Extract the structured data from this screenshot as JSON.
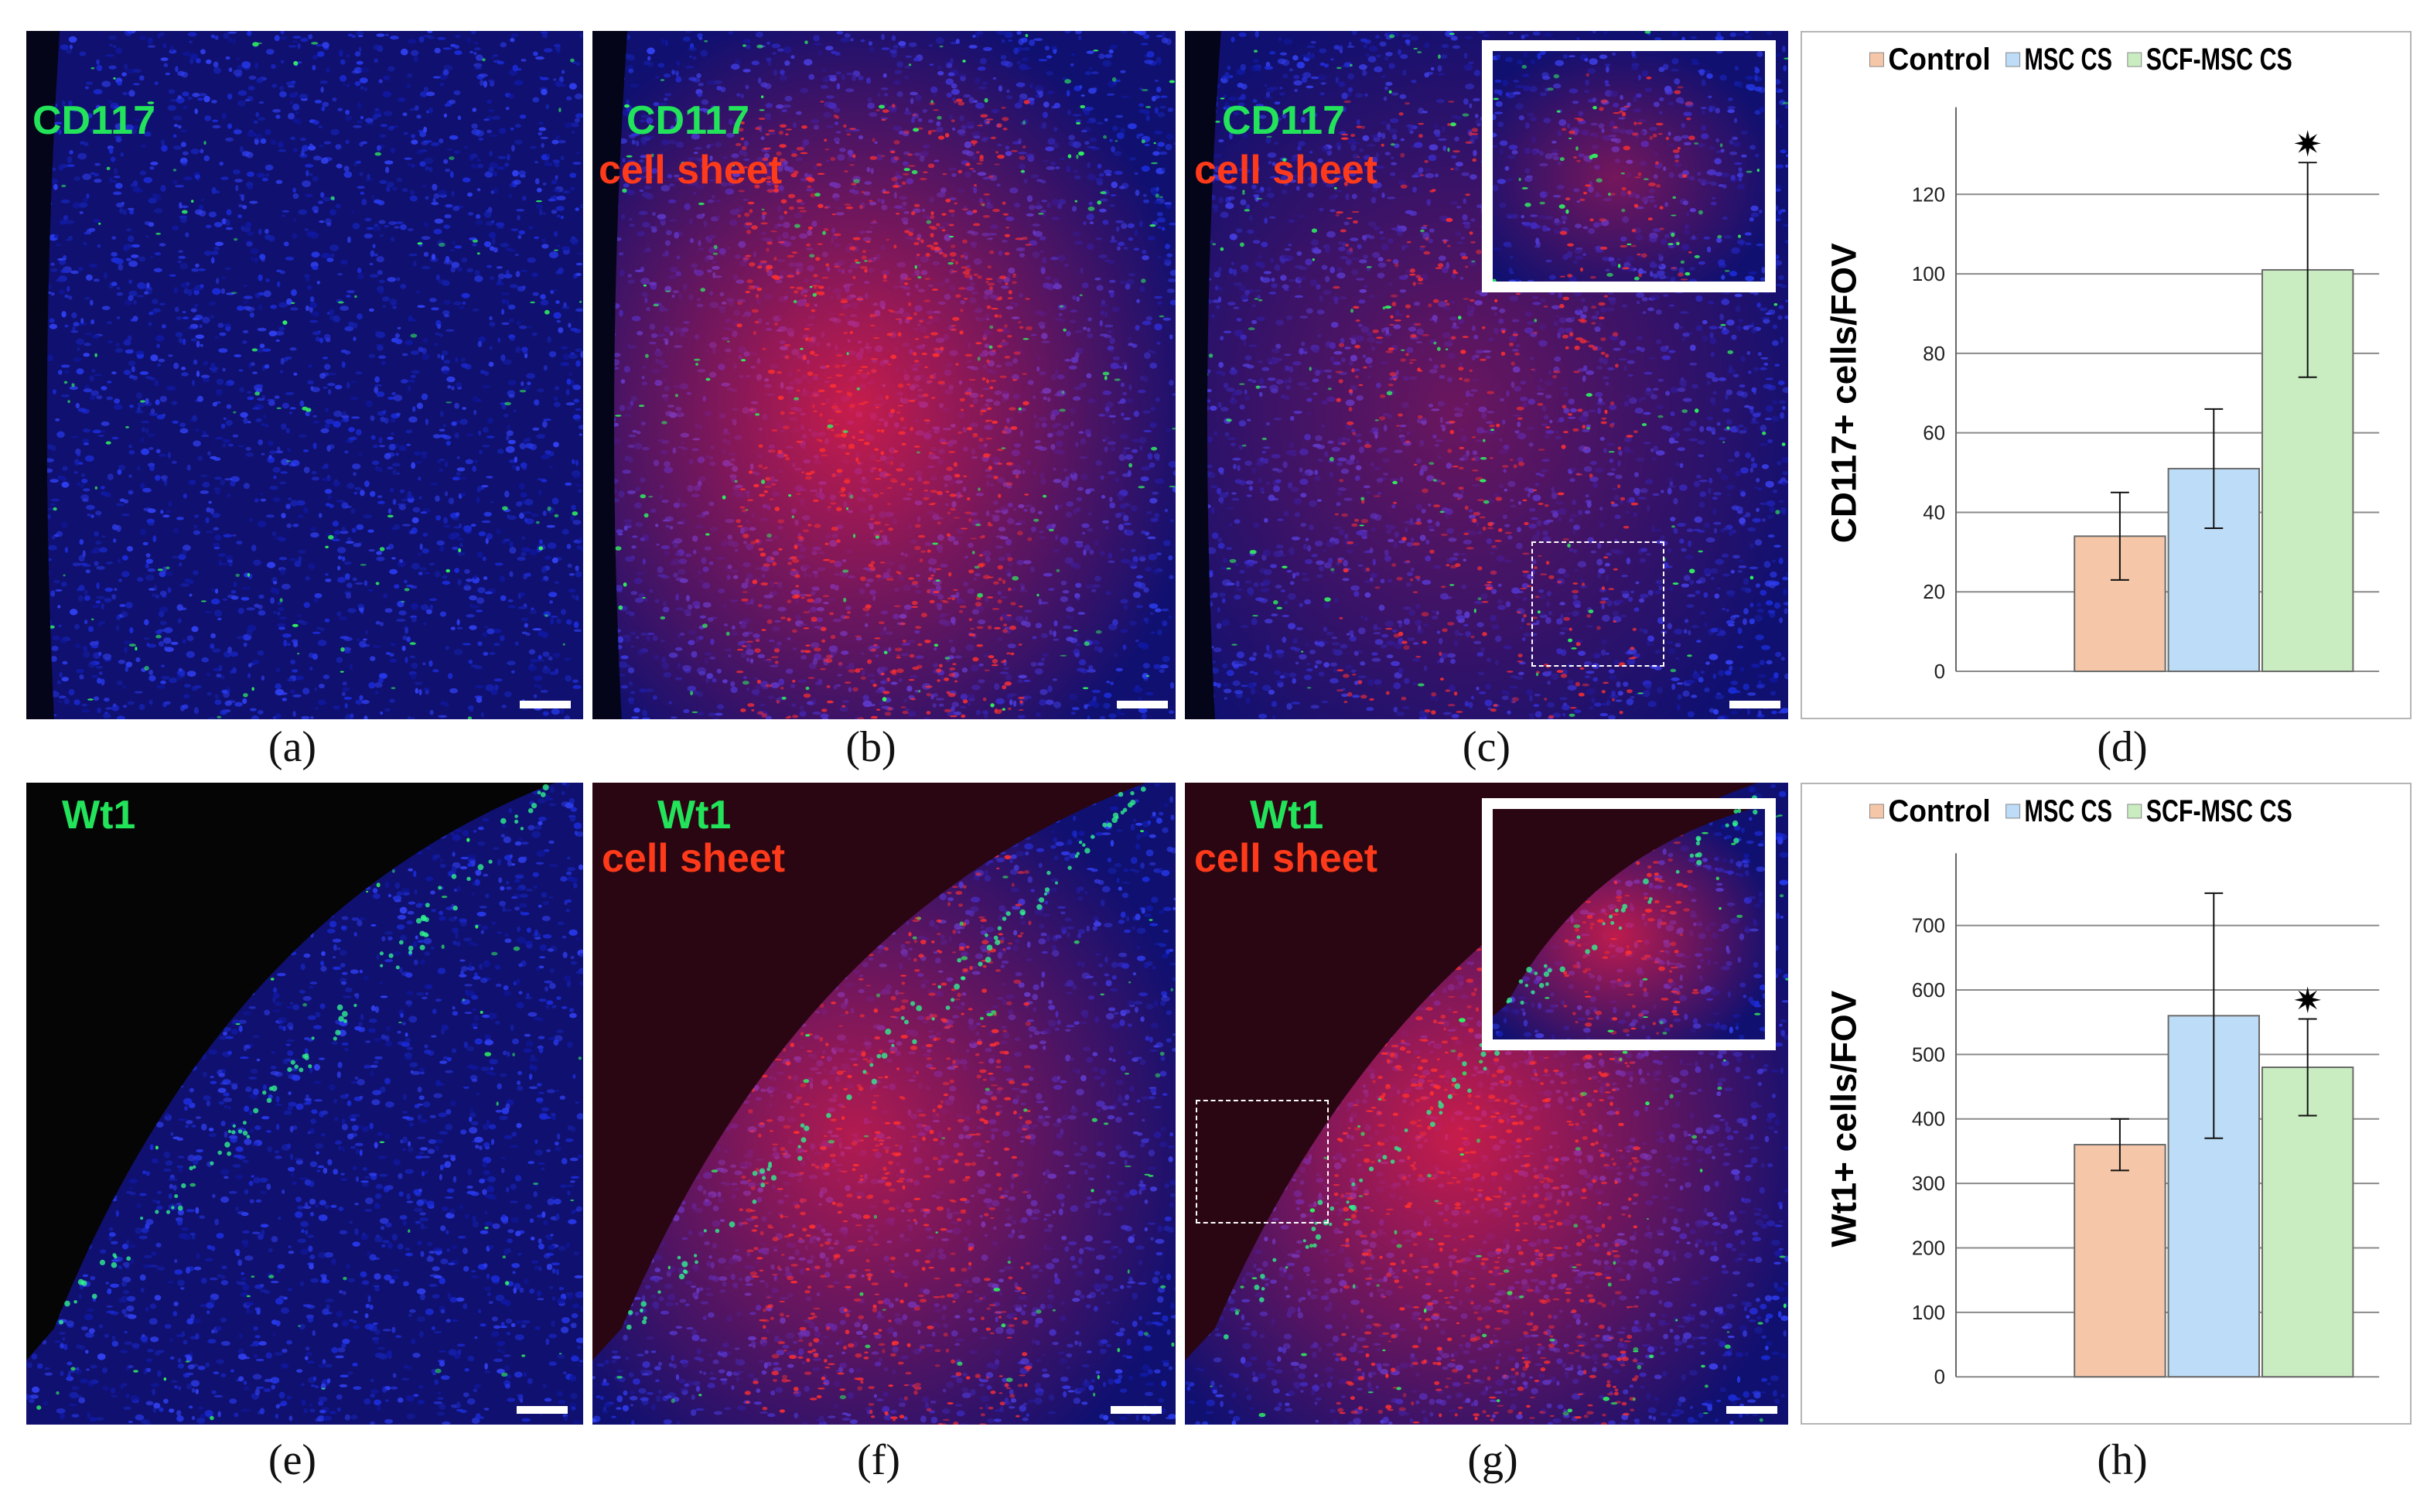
{
  "panels": {
    "a": {
      "stain_label": "CD117",
      "caption": "(a)"
    },
    "b": {
      "stain_label": "CD117",
      "sheet_label": "cell sheet",
      "caption": "(b)"
    },
    "c": {
      "stain_label": "CD117",
      "sheet_label": "cell sheet",
      "caption": "(c)"
    },
    "d": {
      "caption": "(d)"
    },
    "e": {
      "stain_label": "Wt1",
      "caption": "(e)"
    },
    "f": {
      "stain_label": "Wt1",
      "sheet_label": "cell sheet",
      "caption": "(f)"
    },
    "g": {
      "stain_label": "Wt1",
      "sheet_label": "cell sheet",
      "caption": "(g)"
    },
    "h": {
      "caption": "(h)"
    }
  },
  "colors": {
    "nuclei": "#1a2bd6",
    "green_stain": "#22e35a",
    "red_sheet": "#ff2a2a",
    "control": "#f6c6a8",
    "msc_cs": "#bcdcf7",
    "scf_msc_cs": "#c9ecc0"
  },
  "chart_data": [
    {
      "type": "bar",
      "ylabel": "CD117+ cells/FOV",
      "ylim": [
        0,
        140
      ],
      "yticks": [
        0,
        20,
        40,
        60,
        80,
        100,
        120
      ],
      "grid": true,
      "legend_position": "top",
      "series": [
        {
          "name": "Control",
          "value": 34,
          "error": 11,
          "color": "#f6c6a8"
        },
        {
          "name": "MSC CS",
          "value": 51,
          "error": 15,
          "color": "#bcdcf7"
        },
        {
          "name": "SCF-MSC CS",
          "value": 101,
          "error": 27,
          "color": "#c9ecc0",
          "significance": "✷"
        }
      ]
    },
    {
      "type": "bar",
      "ylabel": "Wt1+ cells/FOV",
      "ylim": [
        0,
        800
      ],
      "yticks": [
        0,
        100,
        200,
        300,
        400,
        500,
        600,
        700
      ],
      "grid": true,
      "legend_position": "top",
      "series": [
        {
          "name": "Control",
          "value": 360,
          "error": 40,
          "color": "#f6c6a8"
        },
        {
          "name": "MSC CS",
          "value": 560,
          "error": 190,
          "color": "#bcdcf7"
        },
        {
          "name": "SCF-MSC CS",
          "value": 480,
          "error": 75,
          "color": "#c9ecc0",
          "significance": "✷"
        }
      ]
    }
  ]
}
